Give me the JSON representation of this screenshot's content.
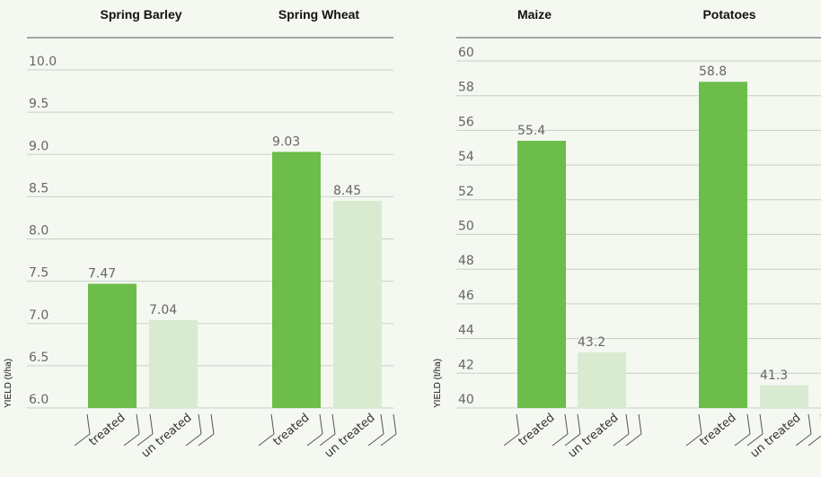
{
  "colors": {
    "treated": "#6cbd4a",
    "untreated": "#d8ebd0",
    "grid": "#c9cfc6",
    "axis": "#555555"
  },
  "chart_data": [
    {
      "type": "bar",
      "ylabel": "YIELD (t/ha)",
      "ylim": [
        6.0,
        10.0
      ],
      "yticks": [
        "6.0",
        "6.5",
        "7.0",
        "7.5",
        "8.0",
        "8.5",
        "9.0",
        "9.5",
        "10.0"
      ],
      "categories": [
        "treated",
        "un treated"
      ],
      "groups": [
        {
          "title": "Spring Barley",
          "values": [
            7.47,
            7.04
          ],
          "labels": [
            "7.47",
            "7.04"
          ]
        },
        {
          "title": "Spring Wheat",
          "values": [
            9.03,
            8.45
          ],
          "labels": [
            "9.03",
            "8.45"
          ]
        }
      ]
    },
    {
      "type": "bar",
      "ylabel": "YIELD (t/ha)",
      "ylim": [
        40,
        60
      ],
      "yticks": [
        "40",
        "42",
        "44",
        "46",
        "48",
        "50",
        "52",
        "54",
        "56",
        "58",
        "60"
      ],
      "categories": [
        "treated",
        "un treated"
      ],
      "groups": [
        {
          "title": "Maize",
          "values": [
            55.4,
            43.2
          ],
          "labels": [
            "55.4",
            "43.2"
          ]
        },
        {
          "title": "Potatoes",
          "values": [
            58.8,
            41.3
          ],
          "labels": [
            "58.8",
            "41.3"
          ]
        }
      ]
    }
  ]
}
